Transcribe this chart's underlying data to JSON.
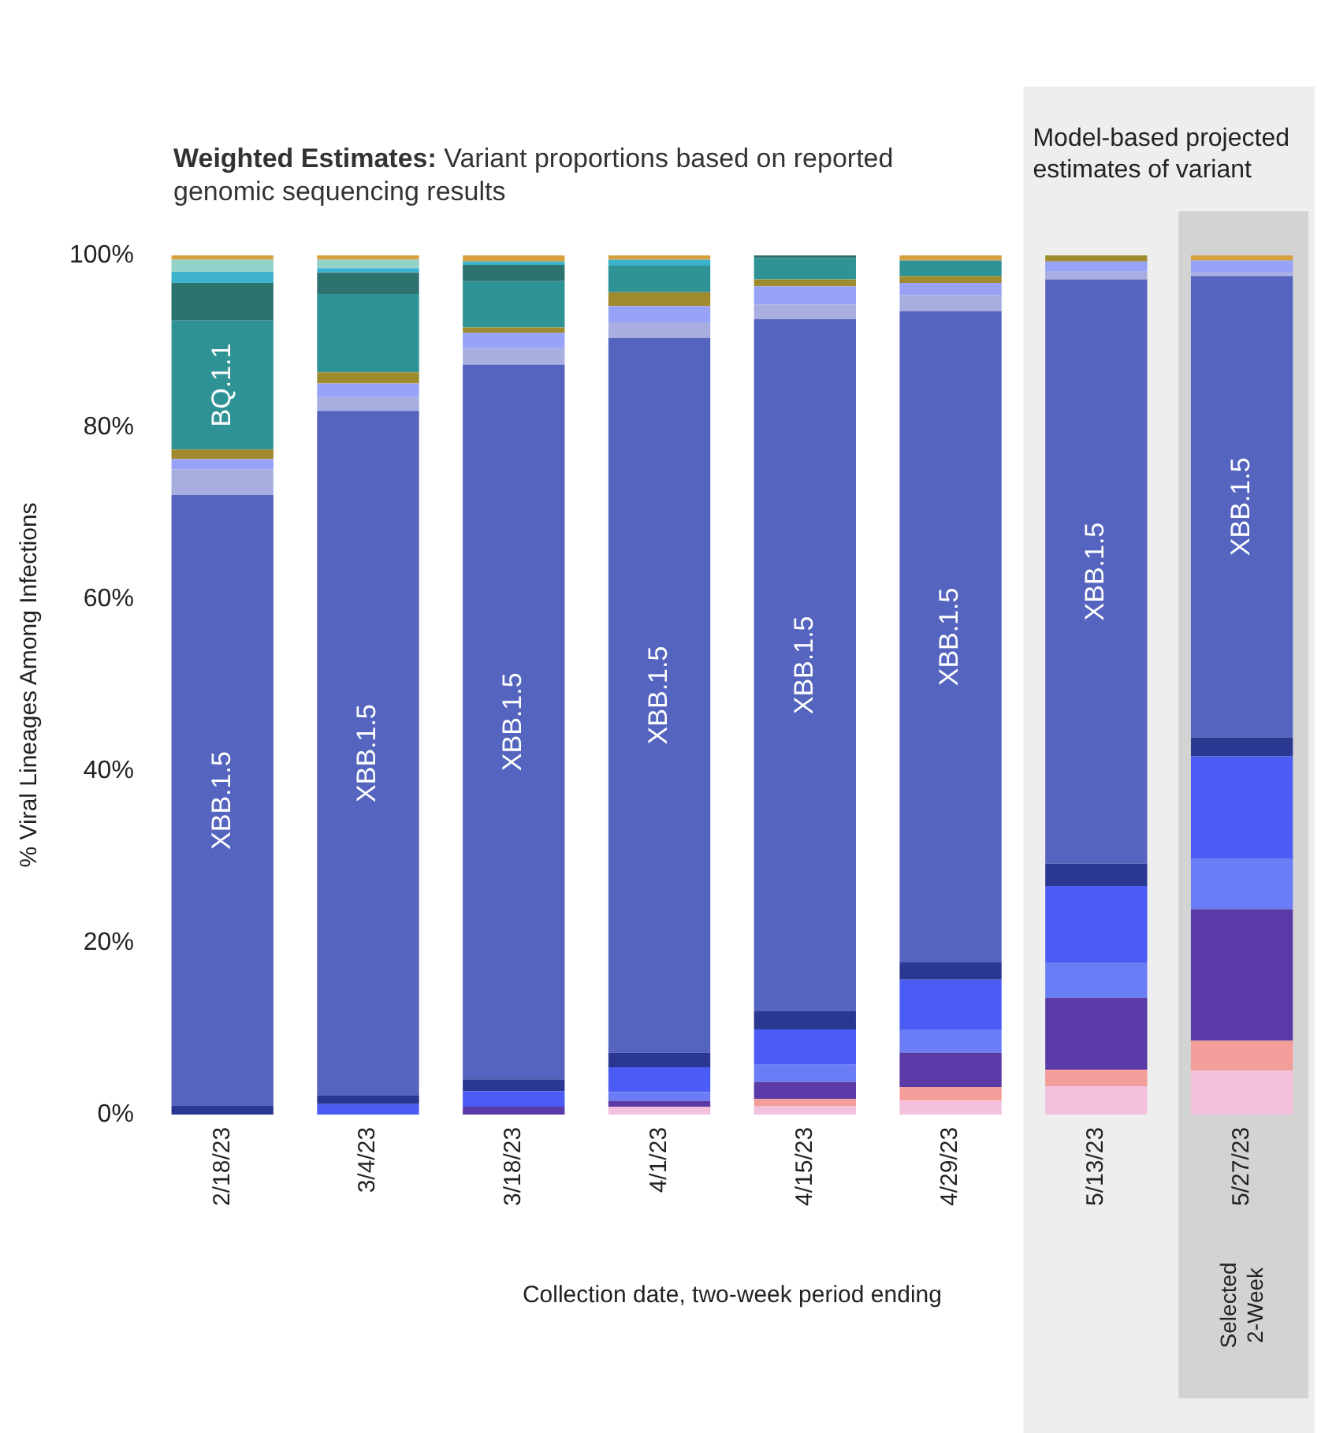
{
  "chart_data": {
    "type": "bar",
    "stacked": true,
    "title": "Weighted Estimates:",
    "subtitle": "Variant proportions based on reported genomic sequencing results",
    "xlabel": "Collection date, two-week period ending",
    "ylabel": "% Viral Lineages Among Infections",
    "categories": [
      "2/18/23",
      "3/4/23",
      "3/18/23",
      "4/1/23",
      "4/15/23",
      "4/29/23",
      "5/13/23",
      "5/27/23"
    ],
    "ylim": [
      0,
      100
    ],
    "yticks": [
      {
        "value": 0,
        "label": "0%"
      },
      {
        "value": 20,
        "label": "20%"
      },
      {
        "value": 40,
        "label": "40%"
      },
      {
        "value": 60,
        "label": "60%"
      },
      {
        "value": 80,
        "label": "80%"
      },
      {
        "value": 100,
        "label": "100%"
      }
    ],
    "grid": false,
    "legend": false,
    "bands": [
      {
        "axis": "x",
        "from": "5/13/23",
        "to": "5/27/23",
        "label": "Model-based projected estimates of variant",
        "color": "#eeeeee"
      },
      {
        "axis": "x",
        "from": "5/27/23",
        "to": "5/27/23",
        "label": "Selected 2-Week",
        "color": "#d3d3d3"
      }
    ],
    "series": [
      {
        "color": "#f3c1de",
        "values": [
          null,
          null,
          null,
          0.9,
          1.0,
          1.6,
          3.3,
          5.1
        ]
      },
      {
        "color": "#f49e9c",
        "values": [
          null,
          null,
          null,
          null,
          0.8,
          1.6,
          1.9,
          3.5
        ]
      },
      {
        "color": "#5a3aa6",
        "values": [
          null,
          null,
          0.9,
          0.7,
          2.0,
          4.0,
          8.4,
          15.3
        ]
      },
      {
        "color": "#6a7cf6",
        "values": [
          null,
          null,
          null,
          1.0,
          2.0,
          2.7,
          4.1,
          5.9
        ]
      },
      {
        "color": "#4a5cf4",
        "values": [
          null,
          1.2,
          1.8,
          2.9,
          4.1,
          5.8,
          8.9,
          11.9
        ]
      },
      {
        "color": "#2b3892",
        "values": [
          1.0,
          1.0,
          1.4,
          1.7,
          2.1,
          2.0,
          2.6,
          2.2
        ]
      },
      {
        "name": "XBB.1.5",
        "color": "#5565bf",
        "values": [
          71.1,
          79.7,
          83.2,
          83.2,
          80.6,
          75.8,
          68.0,
          53.7
        ]
      },
      {
        "color": "#a8aee0",
        "values": [
          3.0,
          1.6,
          1.9,
          1.8,
          1.7,
          1.9,
          0.9,
          0.4
        ]
      },
      {
        "color": "#98a2f6",
        "values": [
          1.2,
          1.6,
          1.8,
          1.9,
          2.1,
          1.4,
          1.2,
          1.4
        ]
      },
      {
        "color": "#a08a2e",
        "values": [
          1.1,
          1.3,
          0.6,
          1.6,
          0.8,
          0.8,
          0.7,
          null
        ]
      },
      {
        "name": "BQ.1.1",
        "color": "#2f9295",
        "values": [
          15.0,
          9.1,
          5.4,
          3.1,
          2.5,
          1.8,
          null,
          null
        ]
      },
      {
        "color": "#2e7270",
        "values": [
          4.4,
          2.5,
          1.9,
          null,
          0.3,
          null,
          null,
          null
        ]
      },
      {
        "color": "#3cb2cc",
        "values": [
          1.3,
          0.5,
          0.4,
          0.7,
          null,
          null,
          null,
          null
        ]
      },
      {
        "color": "#92d2c8",
        "values": [
          1.4,
          1.0,
          null,
          null,
          null,
          null,
          null,
          null
        ]
      },
      {
        "color": "#d6a040",
        "values": [
          0.5,
          0.5,
          0.7,
          0.5,
          null,
          0.6,
          null,
          0.6
        ]
      }
    ]
  }
}
